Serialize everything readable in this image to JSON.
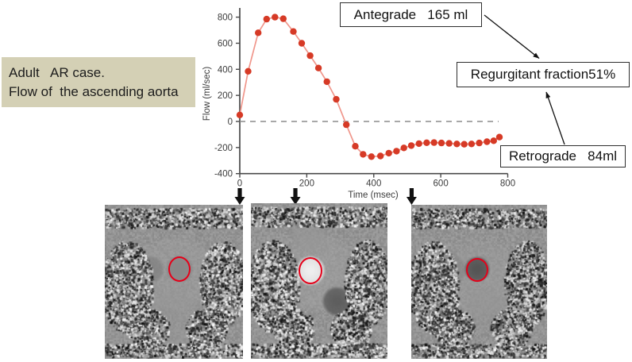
{
  "colors": {
    "accent_red": "#d63a26",
    "curve_line": "#f0968b",
    "roi_circle": "#e50019",
    "case_box_bg": "#d4d0b5",
    "dashed_zero_line": "#8c8c8c",
    "axis": "#4a4a4a",
    "annotation_border": "#2e2e2e",
    "marker_arrow": "#111111"
  },
  "case_label": {
    "line1": "Adult   AR case.",
    "line2": "Flow of  the ascending aorta"
  },
  "annotations": {
    "antegrade": "Antegrade   165 ml",
    "regurgitant": "Regurgitant fraction51%",
    "retrograde": "Retrograde   84ml"
  },
  "chart_data": {
    "type": "line",
    "title": "",
    "xlabel": "Time (msec)",
    "ylabel": "Flow (ml/sec)",
    "xlim": [
      0,
      800
    ],
    "ylim": [
      -400,
      880
    ],
    "x_ticks": [
      0,
      200,
      400,
      600,
      800
    ],
    "y_ticks": [
      800,
      600,
      400,
      200,
      0,
      -200,
      -400
    ],
    "grid": false,
    "legend": false,
    "zero_reference_line": 0,
    "series": [
      {
        "name": "Ascending aortic flow",
        "x": [
          0,
          25,
          55,
          80,
          105,
          130,
          160,
          185,
          210,
          235,
          260,
          288,
          318,
          345,
          368,
          393,
          420,
          445,
          468,
          490,
          512,
          535,
          558,
          580,
          602,
          625,
          648,
          670,
          692,
          715,
          738,
          758,
          775
        ],
        "y": [
          50,
          385,
          680,
          785,
          800,
          788,
          690,
          600,
          505,
          410,
          305,
          170,
          -25,
          -190,
          -252,
          -270,
          -265,
          -243,
          -228,
          -203,
          -185,
          -170,
          -163,
          -162,
          -165,
          -168,
          -172,
          -175,
          -172,
          -165,
          -155,
          -148,
          -120
        ]
      }
    ],
    "image_marker_times_msec": [
      0,
      166,
      513
    ]
  },
  "images": [
    {
      "name": "Phase-contrast image at time marker 1 (0 msec)",
      "aorta_signal": "isointense"
    },
    {
      "name": "Phase-contrast image at time marker 2 (peak systole)",
      "aorta_signal": "bright"
    },
    {
      "name": "Phase-contrast image at time marker 3 (diastole)",
      "aorta_signal": "dark"
    }
  ]
}
